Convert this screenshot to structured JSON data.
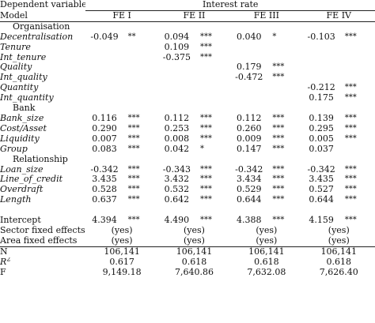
{
  "header": {
    "dependent_label": "Dependent variable",
    "dependent_value": "Interest rate",
    "model_label": "Model",
    "columns": [
      "FE I",
      "FE II",
      "FE III",
      "FE IV"
    ]
  },
  "sections": [
    {
      "title": "Organisation",
      "rows": [
        {
          "label": "Decentralisation",
          "cells": [
            [
              "-0.049",
              "**"
            ],
            [
              "0.094",
              "***"
            ],
            [
              "0.040",
              "*"
            ],
            [
              "-0.103",
              "***"
            ]
          ]
        },
        {
          "label": "Tenure",
          "cells": [
            [
              "",
              ""
            ],
            [
              "0.109",
              "***"
            ],
            [
              "",
              ""
            ],
            [
              "",
              ""
            ]
          ]
        },
        {
          "label": "Int_tenure",
          "cells": [
            [
              "",
              ""
            ],
            [
              "-0.375",
              "***"
            ],
            [
              "",
              ""
            ],
            [
              "",
              ""
            ]
          ]
        },
        {
          "label": "Quality",
          "cells": [
            [
              "",
              ""
            ],
            [
              "",
              ""
            ],
            [
              "0.179",
              "***"
            ],
            [
              "",
              ""
            ]
          ]
        },
        {
          "label": "Int_quality",
          "cells": [
            [
              "",
              ""
            ],
            [
              "",
              ""
            ],
            [
              "-0.472",
              "***"
            ],
            [
              "",
              ""
            ]
          ]
        },
        {
          "label": "Quantity",
          "cells": [
            [
              "",
              ""
            ],
            [
              "",
              ""
            ],
            [
              "",
              ""
            ],
            [
              "-0.212",
              "***"
            ]
          ]
        },
        {
          "label": "Int_quantity",
          "cells": [
            [
              "",
              ""
            ],
            [
              "",
              ""
            ],
            [
              "",
              ""
            ],
            [
              "0.175",
              "***"
            ]
          ]
        }
      ]
    },
    {
      "title": "Bank",
      "rows": [
        {
          "label": "Bank_size",
          "cells": [
            [
              "0.116",
              "***"
            ],
            [
              "0.112",
              "***"
            ],
            [
              "0.112",
              "***"
            ],
            [
              "0.139",
              "***"
            ]
          ]
        },
        {
          "label": "Cost/Asset",
          "cells": [
            [
              "0.290",
              "***"
            ],
            [
              "0.253",
              "***"
            ],
            [
              "0.260",
              "***"
            ],
            [
              "0.295",
              "***"
            ]
          ]
        },
        {
          "label": "Liquidity",
          "cells": [
            [
              "0.007",
              "***"
            ],
            [
              "0.008",
              "***"
            ],
            [
              "0.009",
              "***"
            ],
            [
              "0.005",
              "***"
            ]
          ]
        },
        {
          "label": "Group",
          "cells": [
            [
              "0.083",
              "***"
            ],
            [
              "0.042",
              "*"
            ],
            [
              "0.147",
              "***"
            ],
            [
              "0.037",
              ""
            ]
          ]
        }
      ]
    },
    {
      "title": "Relationship",
      "rows": [
        {
          "label": "Loan_size",
          "cells": [
            [
              "-0.342",
              "***"
            ],
            [
              "-0.343",
              "***"
            ],
            [
              "-0.342",
              "***"
            ],
            [
              "-0.342",
              "***"
            ]
          ]
        },
        {
          "label": "Line_of_credit",
          "cells": [
            [
              "3.435",
              "***"
            ],
            [
              "3.432",
              "***"
            ],
            [
              "3.434",
              "***"
            ],
            [
              "3.435",
              "***"
            ]
          ]
        },
        {
          "label": "Overdraft",
          "cells": [
            [
              "0.528",
              "***"
            ],
            [
              "0.532",
              "***"
            ],
            [
              "0.529",
              "***"
            ],
            [
              "0.527",
              "***"
            ]
          ]
        },
        {
          "label": "Length",
          "cells": [
            [
              "0.637",
              "***"
            ],
            [
              "0.642",
              "***"
            ],
            [
              "0.644",
              "***"
            ],
            [
              "0.644",
              "***"
            ]
          ]
        }
      ]
    }
  ],
  "intercept": {
    "label": "Intercept",
    "cells": [
      [
        "4.394",
        "***"
      ],
      [
        "4.490",
        "***"
      ],
      [
        "4.388",
        "***"
      ],
      [
        "4.159",
        "***"
      ]
    ]
  },
  "fixed_effects": [
    {
      "label": "Sector fixed effects",
      "values": [
        "(yes)",
        "(yes)",
        "(yes)",
        "(yes)"
      ]
    },
    {
      "label": "Area fixed effects",
      "values": [
        "(yes)",
        "(yes)",
        "(yes)",
        "(yes)"
      ]
    }
  ],
  "stats": [
    {
      "label": "N",
      "values": [
        "106,141",
        "106,141",
        "106,141",
        "106,141"
      ]
    },
    {
      "label_main": "R",
      "label_sup": "2",
      "values": [
        "0.617",
        "0.618",
        "0.618",
        "0.618"
      ]
    },
    {
      "label": "F",
      "values": [
        "9,149.18",
        "7,640.86",
        "7,632.08",
        "7,626.40"
      ]
    }
  ]
}
